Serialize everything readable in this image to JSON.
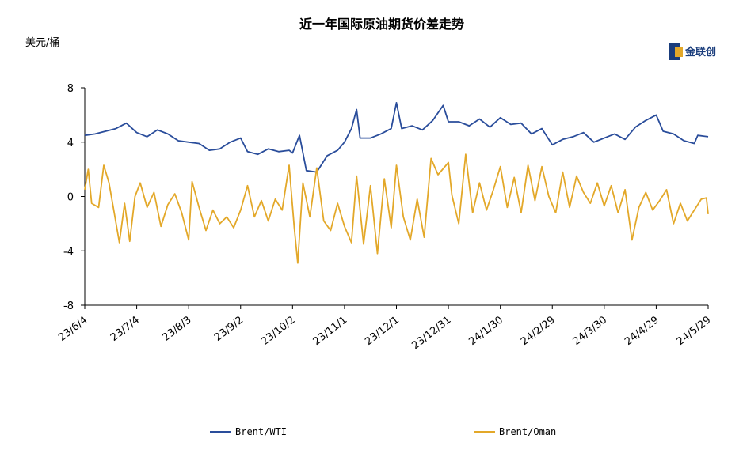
{
  "chart_data": {
    "type": "line",
    "title": "近一年国际原油期货价差走势",
    "ylabel": "美元/桶",
    "ylim": [
      -8,
      8
    ],
    "yticks": [
      -8,
      -4,
      0,
      4,
      8
    ],
    "xlim": [
      "2023-06-04",
      "2024-05-29"
    ],
    "xticks": [
      "23/6/4",
      "23/7/4",
      "23/8/3",
      "23/9/2",
      "23/10/2",
      "23/11/1",
      "23/12/1",
      "23/12/31",
      "24/1/30",
      "24/2/29",
      "24/3/30",
      "24/4/29",
      "24/5/29"
    ],
    "grid": false,
    "legend": "bottom",
    "series": [
      {
        "name": "Brent/WTI",
        "color": "#2a4d9b",
        "points": [
          [
            "2023-06-04",
            4.5
          ],
          [
            "2023-06-10",
            4.6
          ],
          [
            "2023-06-16",
            4.8
          ],
          [
            "2023-06-22",
            5.0
          ],
          [
            "2023-06-28",
            5.4
          ],
          [
            "2023-07-04",
            4.7
          ],
          [
            "2023-07-10",
            4.4
          ],
          [
            "2023-07-16",
            4.9
          ],
          [
            "2023-07-22",
            4.6
          ],
          [
            "2023-07-28",
            4.1
          ],
          [
            "2023-08-03",
            4.0
          ],
          [
            "2023-08-09",
            3.9
          ],
          [
            "2023-08-15",
            3.4
          ],
          [
            "2023-08-21",
            3.5
          ],
          [
            "2023-08-27",
            4.0
          ],
          [
            "2023-09-02",
            4.3
          ],
          [
            "2023-09-06",
            3.3
          ],
          [
            "2023-09-12",
            3.1
          ],
          [
            "2023-09-18",
            3.5
          ],
          [
            "2023-09-24",
            3.3
          ],
          [
            "2023-09-30",
            3.4
          ],
          [
            "2023-10-02",
            3.2
          ],
          [
            "2023-10-06",
            4.5
          ],
          [
            "2023-10-10",
            1.9
          ],
          [
            "2023-10-16",
            1.8
          ],
          [
            "2023-10-22",
            3.0
          ],
          [
            "2023-10-28",
            3.4
          ],
          [
            "2023-11-01",
            4.0
          ],
          [
            "2023-11-05",
            5.0
          ],
          [
            "2023-11-08",
            6.4
          ],
          [
            "2023-11-10",
            4.3
          ],
          [
            "2023-11-16",
            4.3
          ],
          [
            "2023-11-22",
            4.6
          ],
          [
            "2023-11-28",
            5.0
          ],
          [
            "2023-12-01",
            6.9
          ],
          [
            "2023-12-04",
            5.0
          ],
          [
            "2023-12-10",
            5.2
          ],
          [
            "2023-12-16",
            4.9
          ],
          [
            "2023-12-22",
            5.6
          ],
          [
            "2023-12-28",
            6.7
          ],
          [
            "2023-12-31",
            5.5
          ],
          [
            "2024-01-06",
            5.5
          ],
          [
            "2024-01-12",
            5.2
          ],
          [
            "2024-01-18",
            5.7
          ],
          [
            "2024-01-24",
            5.1
          ],
          [
            "2024-01-30",
            5.8
          ],
          [
            "2024-02-05",
            5.3
          ],
          [
            "2024-02-11",
            5.4
          ],
          [
            "2024-02-17",
            4.6
          ],
          [
            "2024-02-23",
            5.0
          ],
          [
            "2024-02-29",
            3.8
          ],
          [
            "2024-03-06",
            4.2
          ],
          [
            "2024-03-12",
            4.4
          ],
          [
            "2024-03-18",
            4.7
          ],
          [
            "2024-03-24",
            4.0
          ],
          [
            "2024-03-30",
            4.3
          ],
          [
            "2024-04-05",
            4.6
          ],
          [
            "2024-04-11",
            4.2
          ],
          [
            "2024-04-17",
            5.1
          ],
          [
            "2024-04-23",
            5.6
          ],
          [
            "2024-04-29",
            6.0
          ],
          [
            "2024-05-03",
            4.8
          ],
          [
            "2024-05-09",
            4.6
          ],
          [
            "2024-05-15",
            4.1
          ],
          [
            "2024-05-21",
            3.9
          ],
          [
            "2024-05-23",
            4.5
          ],
          [
            "2024-05-29",
            4.4
          ]
        ]
      },
      {
        "name": "Brent/Oman",
        "color": "#e3a829",
        "points": [
          [
            "2023-06-04",
            0.5
          ],
          [
            "2023-06-06",
            2.0
          ],
          [
            "2023-06-08",
            -0.5
          ],
          [
            "2023-06-12",
            -0.8
          ],
          [
            "2023-06-15",
            2.3
          ],
          [
            "2023-06-18",
            1.0
          ],
          [
            "2023-06-21",
            -1.2
          ],
          [
            "2023-06-24",
            -3.4
          ],
          [
            "2023-06-27",
            -0.5
          ],
          [
            "2023-06-30",
            -3.3
          ],
          [
            "2023-07-03",
            0.0
          ],
          [
            "2023-07-06",
            1.0
          ],
          [
            "2023-07-10",
            -0.8
          ],
          [
            "2023-07-14",
            0.3
          ],
          [
            "2023-07-18",
            -2.2
          ],
          [
            "2023-07-22",
            -0.6
          ],
          [
            "2023-07-26",
            0.2
          ],
          [
            "2023-07-30",
            -1.2
          ],
          [
            "2023-08-03",
            -3.2
          ],
          [
            "2023-08-05",
            1.1
          ],
          [
            "2023-08-09",
            -0.8
          ],
          [
            "2023-08-13",
            -2.5
          ],
          [
            "2023-08-17",
            -1.0
          ],
          [
            "2023-08-21",
            -2.0
          ],
          [
            "2023-08-25",
            -1.5
          ],
          [
            "2023-08-29",
            -2.3
          ],
          [
            "2023-09-02",
            -1.0
          ],
          [
            "2023-09-06",
            0.8
          ],
          [
            "2023-09-10",
            -1.5
          ],
          [
            "2023-09-14",
            -0.3
          ],
          [
            "2023-09-18",
            -1.8
          ],
          [
            "2023-09-22",
            -0.2
          ],
          [
            "2023-09-26",
            -1.0
          ],
          [
            "2023-09-30",
            2.3
          ],
          [
            "2023-10-03",
            -2.3
          ],
          [
            "2023-10-05",
            -4.9
          ],
          [
            "2023-10-08",
            1.0
          ],
          [
            "2023-10-12",
            -1.5
          ],
          [
            "2023-10-16",
            2.1
          ],
          [
            "2023-10-20",
            -1.8
          ],
          [
            "2023-10-24",
            -2.5
          ],
          [
            "2023-10-28",
            -0.5
          ],
          [
            "2023-11-01",
            -2.2
          ],
          [
            "2023-11-05",
            -3.4
          ],
          [
            "2023-11-08",
            1.5
          ],
          [
            "2023-11-12",
            -3.5
          ],
          [
            "2023-11-16",
            0.8
          ],
          [
            "2023-11-20",
            -4.2
          ],
          [
            "2023-11-24",
            1.3
          ],
          [
            "2023-11-28",
            -2.3
          ],
          [
            "2023-12-01",
            2.3
          ],
          [
            "2023-12-05",
            -1.5
          ],
          [
            "2023-12-09",
            -3.2
          ],
          [
            "2023-12-13",
            -0.2
          ],
          [
            "2023-12-17",
            -3.0
          ],
          [
            "2023-12-21",
            2.8
          ],
          [
            "2023-12-25",
            1.6
          ],
          [
            "2023-12-31",
            2.5
          ],
          [
            "2024-01-02",
            0.1
          ],
          [
            "2024-01-06",
            -2.0
          ],
          [
            "2024-01-10",
            3.1
          ],
          [
            "2024-01-14",
            -1.2
          ],
          [
            "2024-01-18",
            1.0
          ],
          [
            "2024-01-22",
            -1.0
          ],
          [
            "2024-01-26",
            0.5
          ],
          [
            "2024-01-30",
            2.2
          ],
          [
            "2024-02-03",
            -0.8
          ],
          [
            "2024-02-07",
            1.4
          ],
          [
            "2024-02-11",
            -1.2
          ],
          [
            "2024-02-15",
            2.3
          ],
          [
            "2024-02-19",
            -0.3
          ],
          [
            "2024-02-23",
            2.2
          ],
          [
            "2024-02-27",
            0.0
          ],
          [
            "2024-03-02",
            -1.2
          ],
          [
            "2024-03-06",
            1.8
          ],
          [
            "2024-03-10",
            -0.8
          ],
          [
            "2024-03-14",
            1.5
          ],
          [
            "2024-03-18",
            0.3
          ],
          [
            "2024-03-22",
            -0.5
          ],
          [
            "2024-03-26",
            1.0
          ],
          [
            "2024-03-30",
            -0.7
          ],
          [
            "2024-04-03",
            0.8
          ],
          [
            "2024-04-07",
            -1.2
          ],
          [
            "2024-04-11",
            0.5
          ],
          [
            "2024-04-15",
            -3.2
          ],
          [
            "2024-04-19",
            -0.8
          ],
          [
            "2024-04-23",
            0.3
          ],
          [
            "2024-04-27",
            -1.0
          ],
          [
            "2024-05-01",
            -0.3
          ],
          [
            "2024-05-05",
            0.5
          ],
          [
            "2024-05-09",
            -2.0
          ],
          [
            "2024-05-13",
            -0.5
          ],
          [
            "2024-05-17",
            -1.8
          ],
          [
            "2024-05-21",
            -1.0
          ],
          [
            "2024-05-25",
            -0.2
          ],
          [
            "2024-05-28",
            -0.1
          ],
          [
            "2024-05-29",
            -1.3
          ]
        ]
      }
    ]
  },
  "logo": {
    "text": "金联创"
  }
}
